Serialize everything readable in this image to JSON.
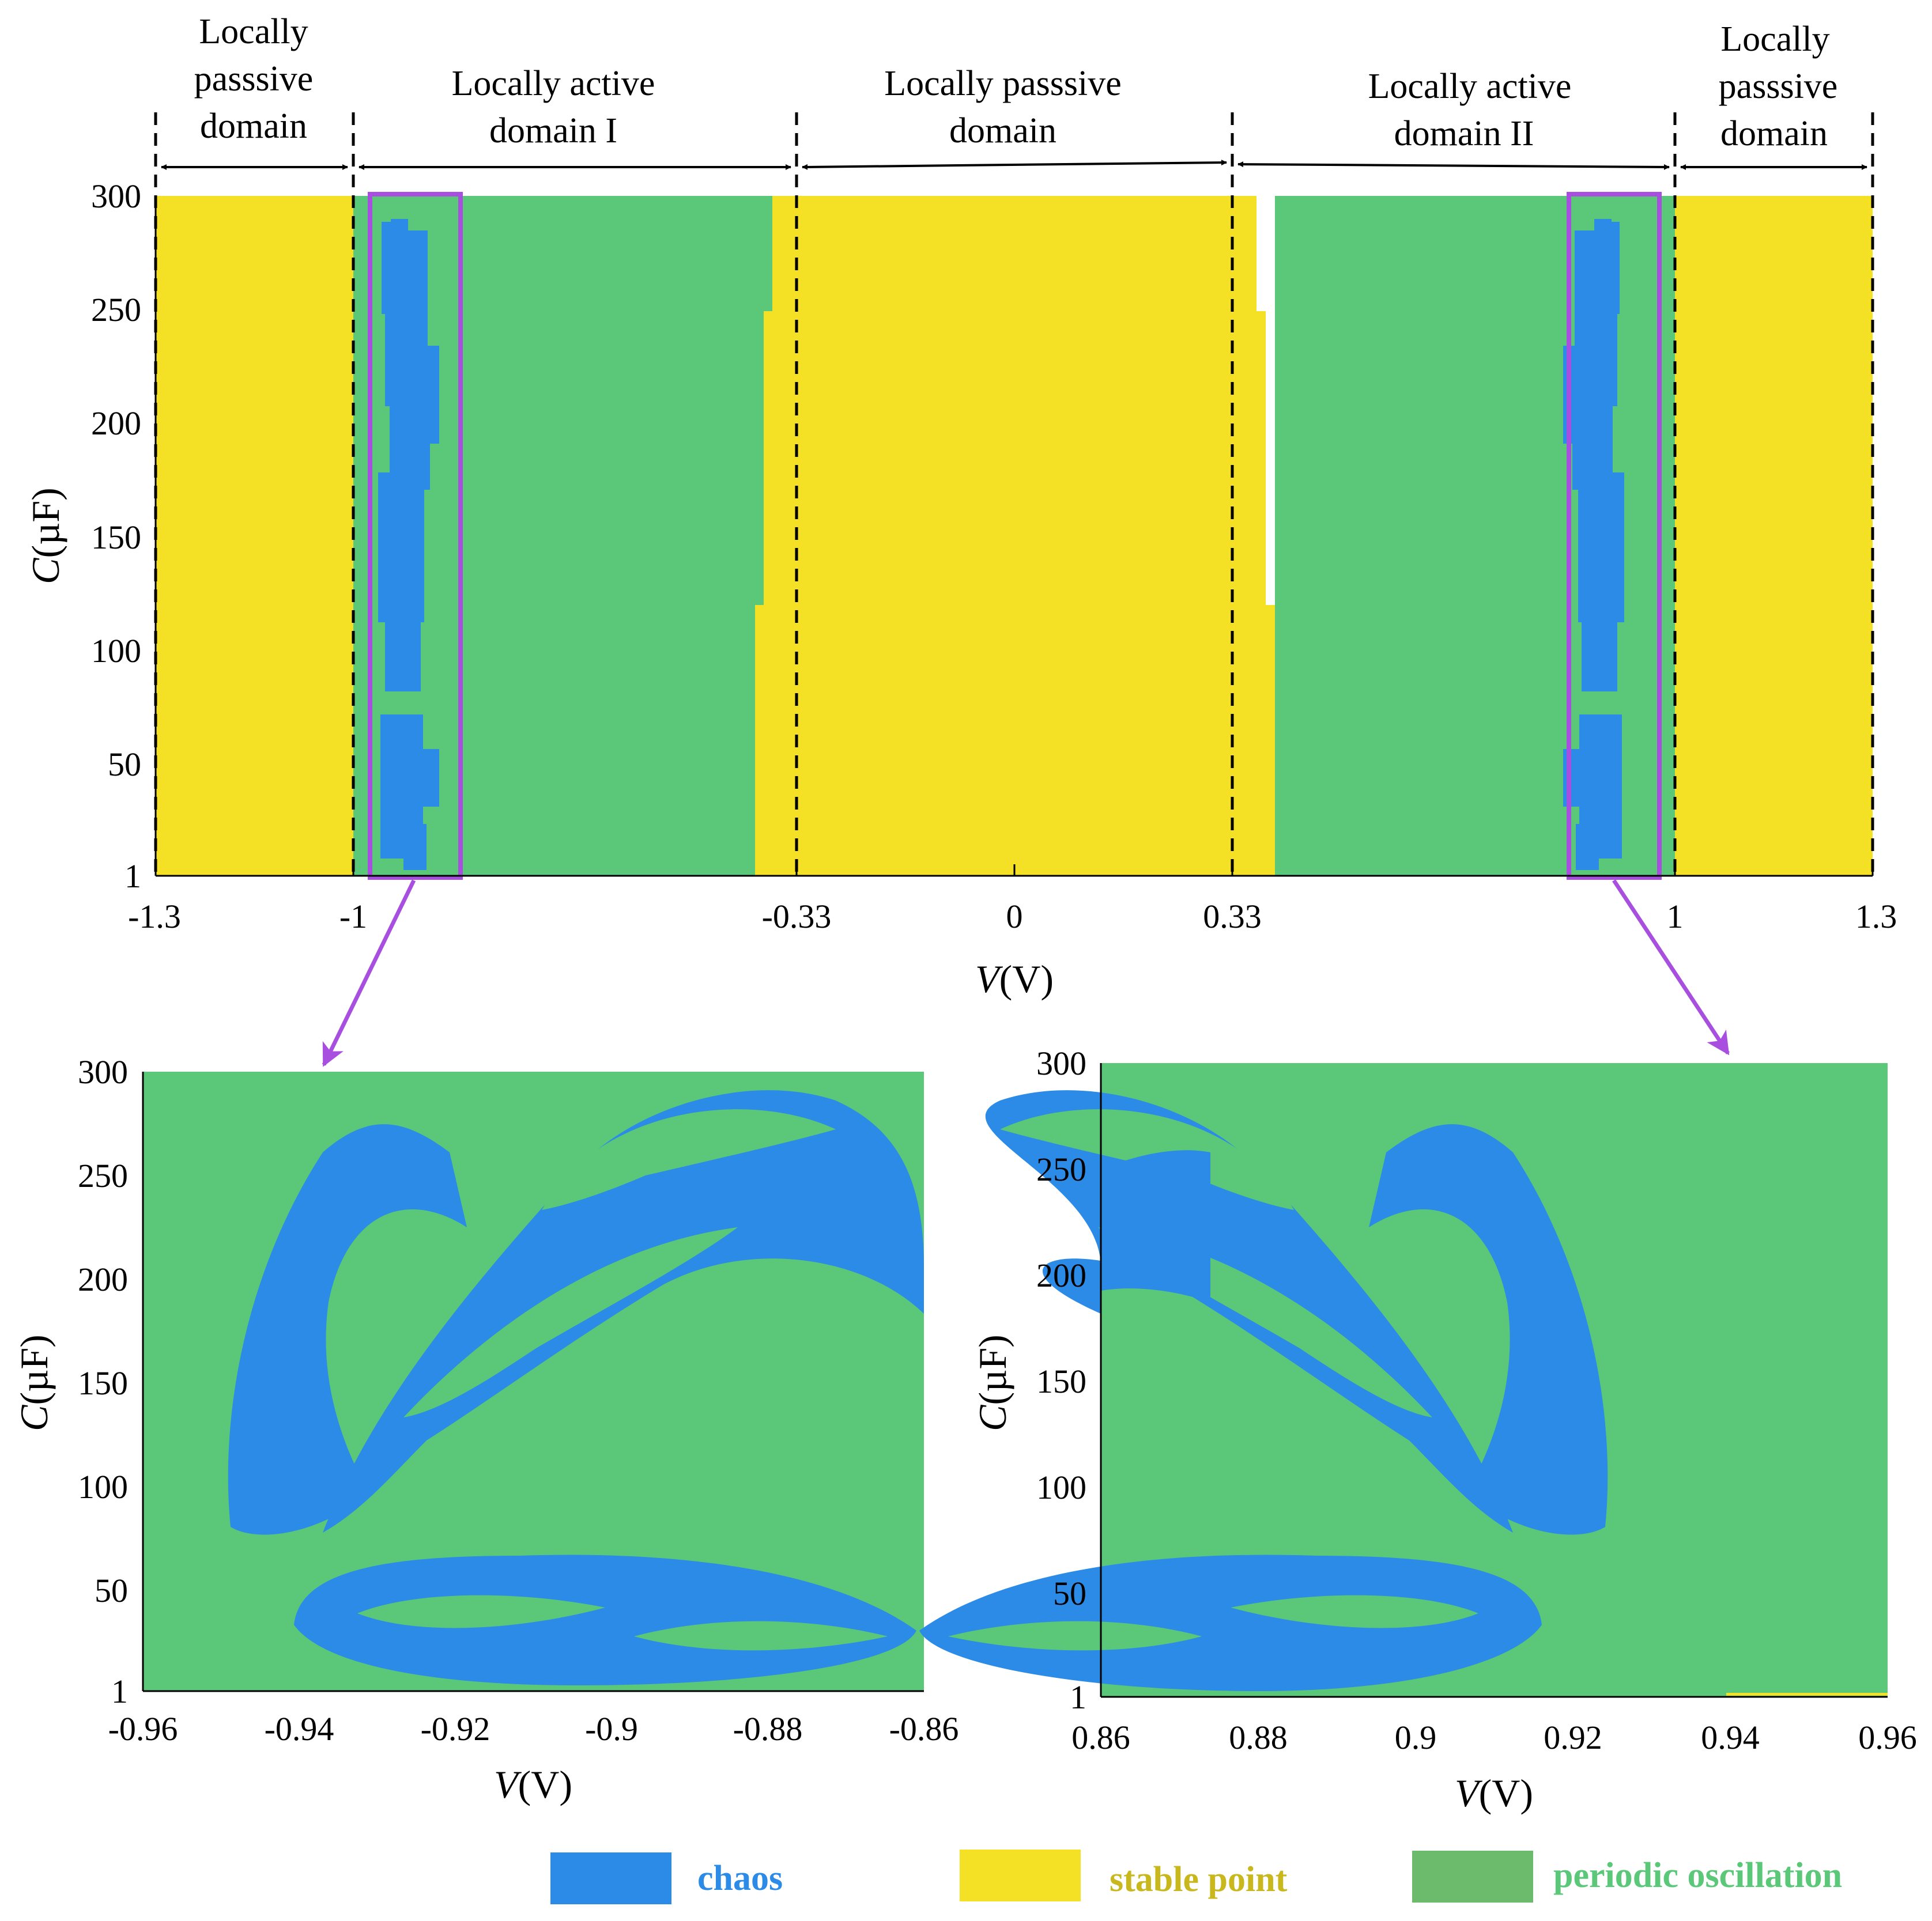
{
  "colors": {
    "chaos": "#2b8be6",
    "stable": "#f4e126",
    "periodic": "#5ac878",
    "highlight": "#a84fe0",
    "legend_periodic": "#6cba6c"
  },
  "top_chart": {
    "ylabel_italic": "C",
    "ylabel_unit": "(µF)",
    "xlabel_italic": "V",
    "xlabel_unit": "(V)",
    "xticks": [
      "-1.3",
      "-1",
      "-0.33",
      "0",
      "0.33",
      "1",
      "1.3"
    ],
    "yticks": [
      "300",
      "250",
      "200",
      "150",
      "100",
      "50",
      "1"
    ],
    "domains": [
      {
        "lines": [
          "Locally",
          "passsive",
          "domain"
        ]
      },
      {
        "lines": [
          "Locally active",
          "domain I"
        ]
      },
      {
        "lines": [
          "Locally passsive",
          "domain"
        ]
      },
      {
        "lines": [
          "Locally active",
          "domain II"
        ]
      },
      {
        "lines": [
          "Locally",
          "passsive",
          "domain"
        ]
      }
    ]
  },
  "bottom_left": {
    "xticks": [
      "-0.96",
      "-0.94",
      "-0.92",
      "-0.9",
      "-0.88",
      "-0.86"
    ],
    "yticks": [
      "300",
      "250",
      "200",
      "150",
      "100",
      "50",
      "1"
    ],
    "xlabel_italic": "V",
    "xlabel_unit": "(V)",
    "ylabel_italic": "C",
    "ylabel_unit": "(µF)"
  },
  "bottom_right": {
    "xticks": [
      "0.86",
      "0.88",
      "0.9",
      "0.92",
      "0.94",
      "0.96"
    ],
    "yticks": [
      "300",
      "250",
      "200",
      "150",
      "100",
      "50",
      "1"
    ],
    "xlabel_italic": "V",
    "xlabel_unit": "(V)",
    "ylabel_italic": "C",
    "ylabel_unit": "(µF)"
  },
  "legend": {
    "chaos": "chaos",
    "stable": "stable point",
    "periodic": "periodic oscillation"
  },
  "chart_data": [
    {
      "type": "heatmap",
      "title": "",
      "xlabel": "V(V)",
      "ylabel": "C(µF)",
      "xlim": [
        -1.3,
        1.3
      ],
      "ylim": [
        1,
        300
      ],
      "domain_boundaries": [
        -1.3,
        -1,
        -0.33,
        0.33,
        1,
        1.3
      ],
      "regions": [
        {
          "state": "stable point",
          "v_range": [
            -1.3,
            -1
          ]
        },
        {
          "state": "periodic oscillation",
          "v_range": [
            -1,
            -0.35
          ]
        },
        {
          "state": "chaos",
          "v_range": [
            -0.97,
            -0.88
          ]
        },
        {
          "state": "stable point",
          "v_range": [
            -0.35,
            0.35
          ]
        },
        {
          "state": "periodic oscillation",
          "v_range": [
            0.35,
            1
          ]
        },
        {
          "state": "chaos",
          "v_range": [
            0.88,
            0.97
          ]
        },
        {
          "state": "stable point",
          "v_range": [
            1,
            1.3
          ]
        }
      ],
      "zoom_windows": [
        [
          -0.96,
          -0.86
        ],
        [
          0.86,
          0.96
        ]
      ]
    },
    {
      "type": "heatmap",
      "xlabel": "V(V)",
      "ylabel": "C(µF)",
      "xlim": [
        -0.96,
        -0.86
      ],
      "ylim": [
        1,
        300
      ],
      "background": "periodic oscillation",
      "foreground": "chaos"
    },
    {
      "type": "heatmap",
      "xlabel": "V(V)",
      "ylabel": "C(µF)",
      "xlim": [
        0.86,
        0.96
      ],
      "ylim": [
        1,
        300
      ],
      "background": "periodic oscillation",
      "foreground": "chaos"
    }
  ]
}
